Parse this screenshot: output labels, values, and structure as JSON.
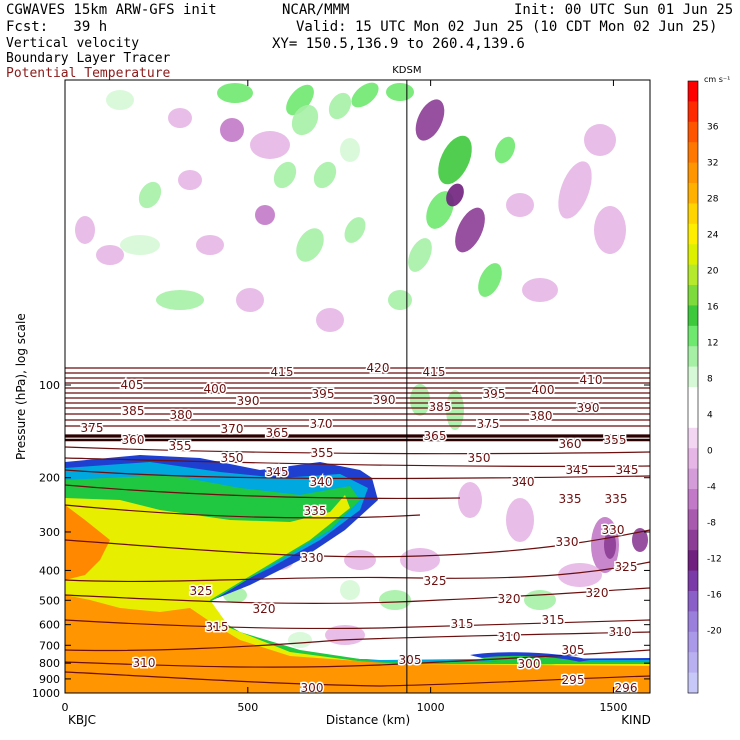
{
  "header": {
    "model": "CGWAVES 15km ARW-GFS init",
    "fcst": "Fcst:   39 h",
    "field1": "Vertical velocity",
    "field2": "Boundary Layer Tracer",
    "field3": "Potential Temperature",
    "org": "NCAR/MMM",
    "init": "Init: 00 UTC Sun 01 Jun 25",
    "valid": "Valid: 15 UTC Mon 02 Jun 25 (10 CDT Mon 02 Jun 25)",
    "xy": "XY= 150.5,136.9 to 260.4,139.6"
  },
  "colors": {
    "theta": "#6b0f0f",
    "field3_text": "#8b1a1a"
  },
  "chart_data": {
    "type": "heatmap",
    "title": "",
    "xlabel": "Distance (km)",
    "ylabel": "Pressure (hPa), log scale",
    "xlim": [
      0,
      1600
    ],
    "x_ticks": [
      0,
      500,
      1000,
      1500
    ],
    "y_scale": "log",
    "y_ticks": [
      100,
      200,
      300,
      400,
      500,
      600,
      700,
      800,
      900,
      1000
    ],
    "endpoints": {
      "left": "KBJC",
      "right": "KIND"
    },
    "marker": {
      "label": "KDSM",
      "x_km": 935
    },
    "colorbar": {
      "unit": "cm s⁻¹",
      "labels": [
        "36",
        "32",
        "28",
        "24",
        "20",
        "16",
        "12",
        "8",
        "4",
        "0",
        "-4",
        "-8",
        "-12",
        "-16",
        "-20"
      ],
      "colors": [
        "#ff0000",
        "#ff2a00",
        "#ff5500",
        "#ff7700",
        "#ff9500",
        "#ffb000",
        "#ffd400",
        "#ffee00",
        "#dcf000",
        "#b5ea2c",
        "#7ddc3c",
        "#3ec83c",
        "#6ee86e",
        "#a6f0a6",
        "#d6f8d6",
        "#ffffff",
        "#ffffff",
        "#f2d6f2",
        "#e6b6e6",
        "#d49cd8",
        "#c27ac8",
        "#a85aaf",
        "#8c3d96",
        "#70207e",
        "#7a3aa8",
        "#8a60c8",
        "#9a80dc",
        "#aa98e8",
        "#b8b0f0",
        "#c8c8f8"
      ]
    },
    "theta_labels": [
      {
        "t": "420",
        "x": 378,
        "y": 368
      },
      {
        "t": "415",
        "x": 282,
        "y": 372
      },
      {
        "t": "415",
        "x": 434,
        "y": 372
      },
      {
        "t": "410",
        "x": 591,
        "y": 380
      },
      {
        "t": "405",
        "x": 132,
        "y": 385
      },
      {
        "t": "400",
        "x": 215,
        "y": 389
      },
      {
        "t": "400",
        "x": 543,
        "y": 390
      },
      {
        "t": "395",
        "x": 323,
        "y": 394
      },
      {
        "t": "395",
        "x": 494,
        "y": 394
      },
      {
        "t": "390",
        "x": 248,
        "y": 401
      },
      {
        "t": "390",
        "x": 384,
        "y": 400
      },
      {
        "t": "390",
        "x": 588,
        "y": 408
      },
      {
        "t": "385",
        "x": 133,
        "y": 411
      },
      {
        "t": "385",
        "x": 440,
        "y": 407
      },
      {
        "t": "380",
        "x": 181,
        "y": 415
      },
      {
        "t": "380",
        "x": 541,
        "y": 416
      },
      {
        "t": "375",
        "x": 92,
        "y": 428
      },
      {
        "t": "375",
        "x": 488,
        "y": 424
      },
      {
        "t": "370",
        "x": 232,
        "y": 429
      },
      {
        "t": "370",
        "x": 321,
        "y": 424
      },
      {
        "t": "365",
        "x": 277,
        "y": 433
      },
      {
        "t": "365",
        "x": 435,
        "y": 436
      },
      {
        "t": "360",
        "x": 133,
        "y": 440
      },
      {
        "t": "360",
        "x": 570,
        "y": 444
      },
      {
        "t": "355",
        "x": 180,
        "y": 446
      },
      {
        "t": "355",
        "x": 322,
        "y": 453
      },
      {
        "t": "355",
        "x": 615,
        "y": 440
      },
      {
        "t": "350",
        "x": 232,
        "y": 458
      },
      {
        "t": "350",
        "x": 479,
        "y": 458
      },
      {
        "t": "345",
        "x": 277,
        "y": 472
      },
      {
        "t": "345",
        "x": 577,
        "y": 470
      },
      {
        "t": "345",
        "x": 627,
        "y": 470
      },
      {
        "t": "340",
        "x": 321,
        "y": 482
      },
      {
        "t": "340",
        "x": 523,
        "y": 482
      },
      {
        "t": "335",
        "x": 315,
        "y": 511
      },
      {
        "t": "335",
        "x": 570,
        "y": 499
      },
      {
        "t": "335",
        "x": 616,
        "y": 499
      },
      {
        "t": "330",
        "x": 312,
        "y": 558
      },
      {
        "t": "330",
        "x": 567,
        "y": 542
      },
      {
        "t": "330",
        "x": 613,
        "y": 530
      },
      {
        "t": "325",
        "x": 201,
        "y": 591
      },
      {
        "t": "325",
        "x": 435,
        "y": 581
      },
      {
        "t": "325",
        "x": 626,
        "y": 567
      },
      {
        "t": "320",
        "x": 264,
        "y": 609
      },
      {
        "t": "320",
        "x": 509,
        "y": 599
      },
      {
        "t": "320",
        "x": 597,
        "y": 593
      },
      {
        "t": "315",
        "x": 217,
        "y": 627
      },
      {
        "t": "315",
        "x": 462,
        "y": 624
      },
      {
        "t": "315",
        "x": 553,
        "y": 620
      },
      {
        "t": "310",
        "x": 144,
        "y": 663
      },
      {
        "t": "310",
        "x": 509,
        "y": 637
      },
      {
        "t": "310",
        "x": 620,
        "y": 632
      },
      {
        "t": "305",
        "x": 410,
        "y": 660
      },
      {
        "t": "305",
        "x": 573,
        "y": 650
      },
      {
        "t": "300",
        "x": 529,
        "y": 664
      },
      {
        "t": "300",
        "x": 312,
        "y": 688
      },
      {
        "t": "295",
        "x": 573,
        "y": 680
      },
      {
        "t": "296",
        "x": 626,
        "y": 688
      }
    ]
  }
}
